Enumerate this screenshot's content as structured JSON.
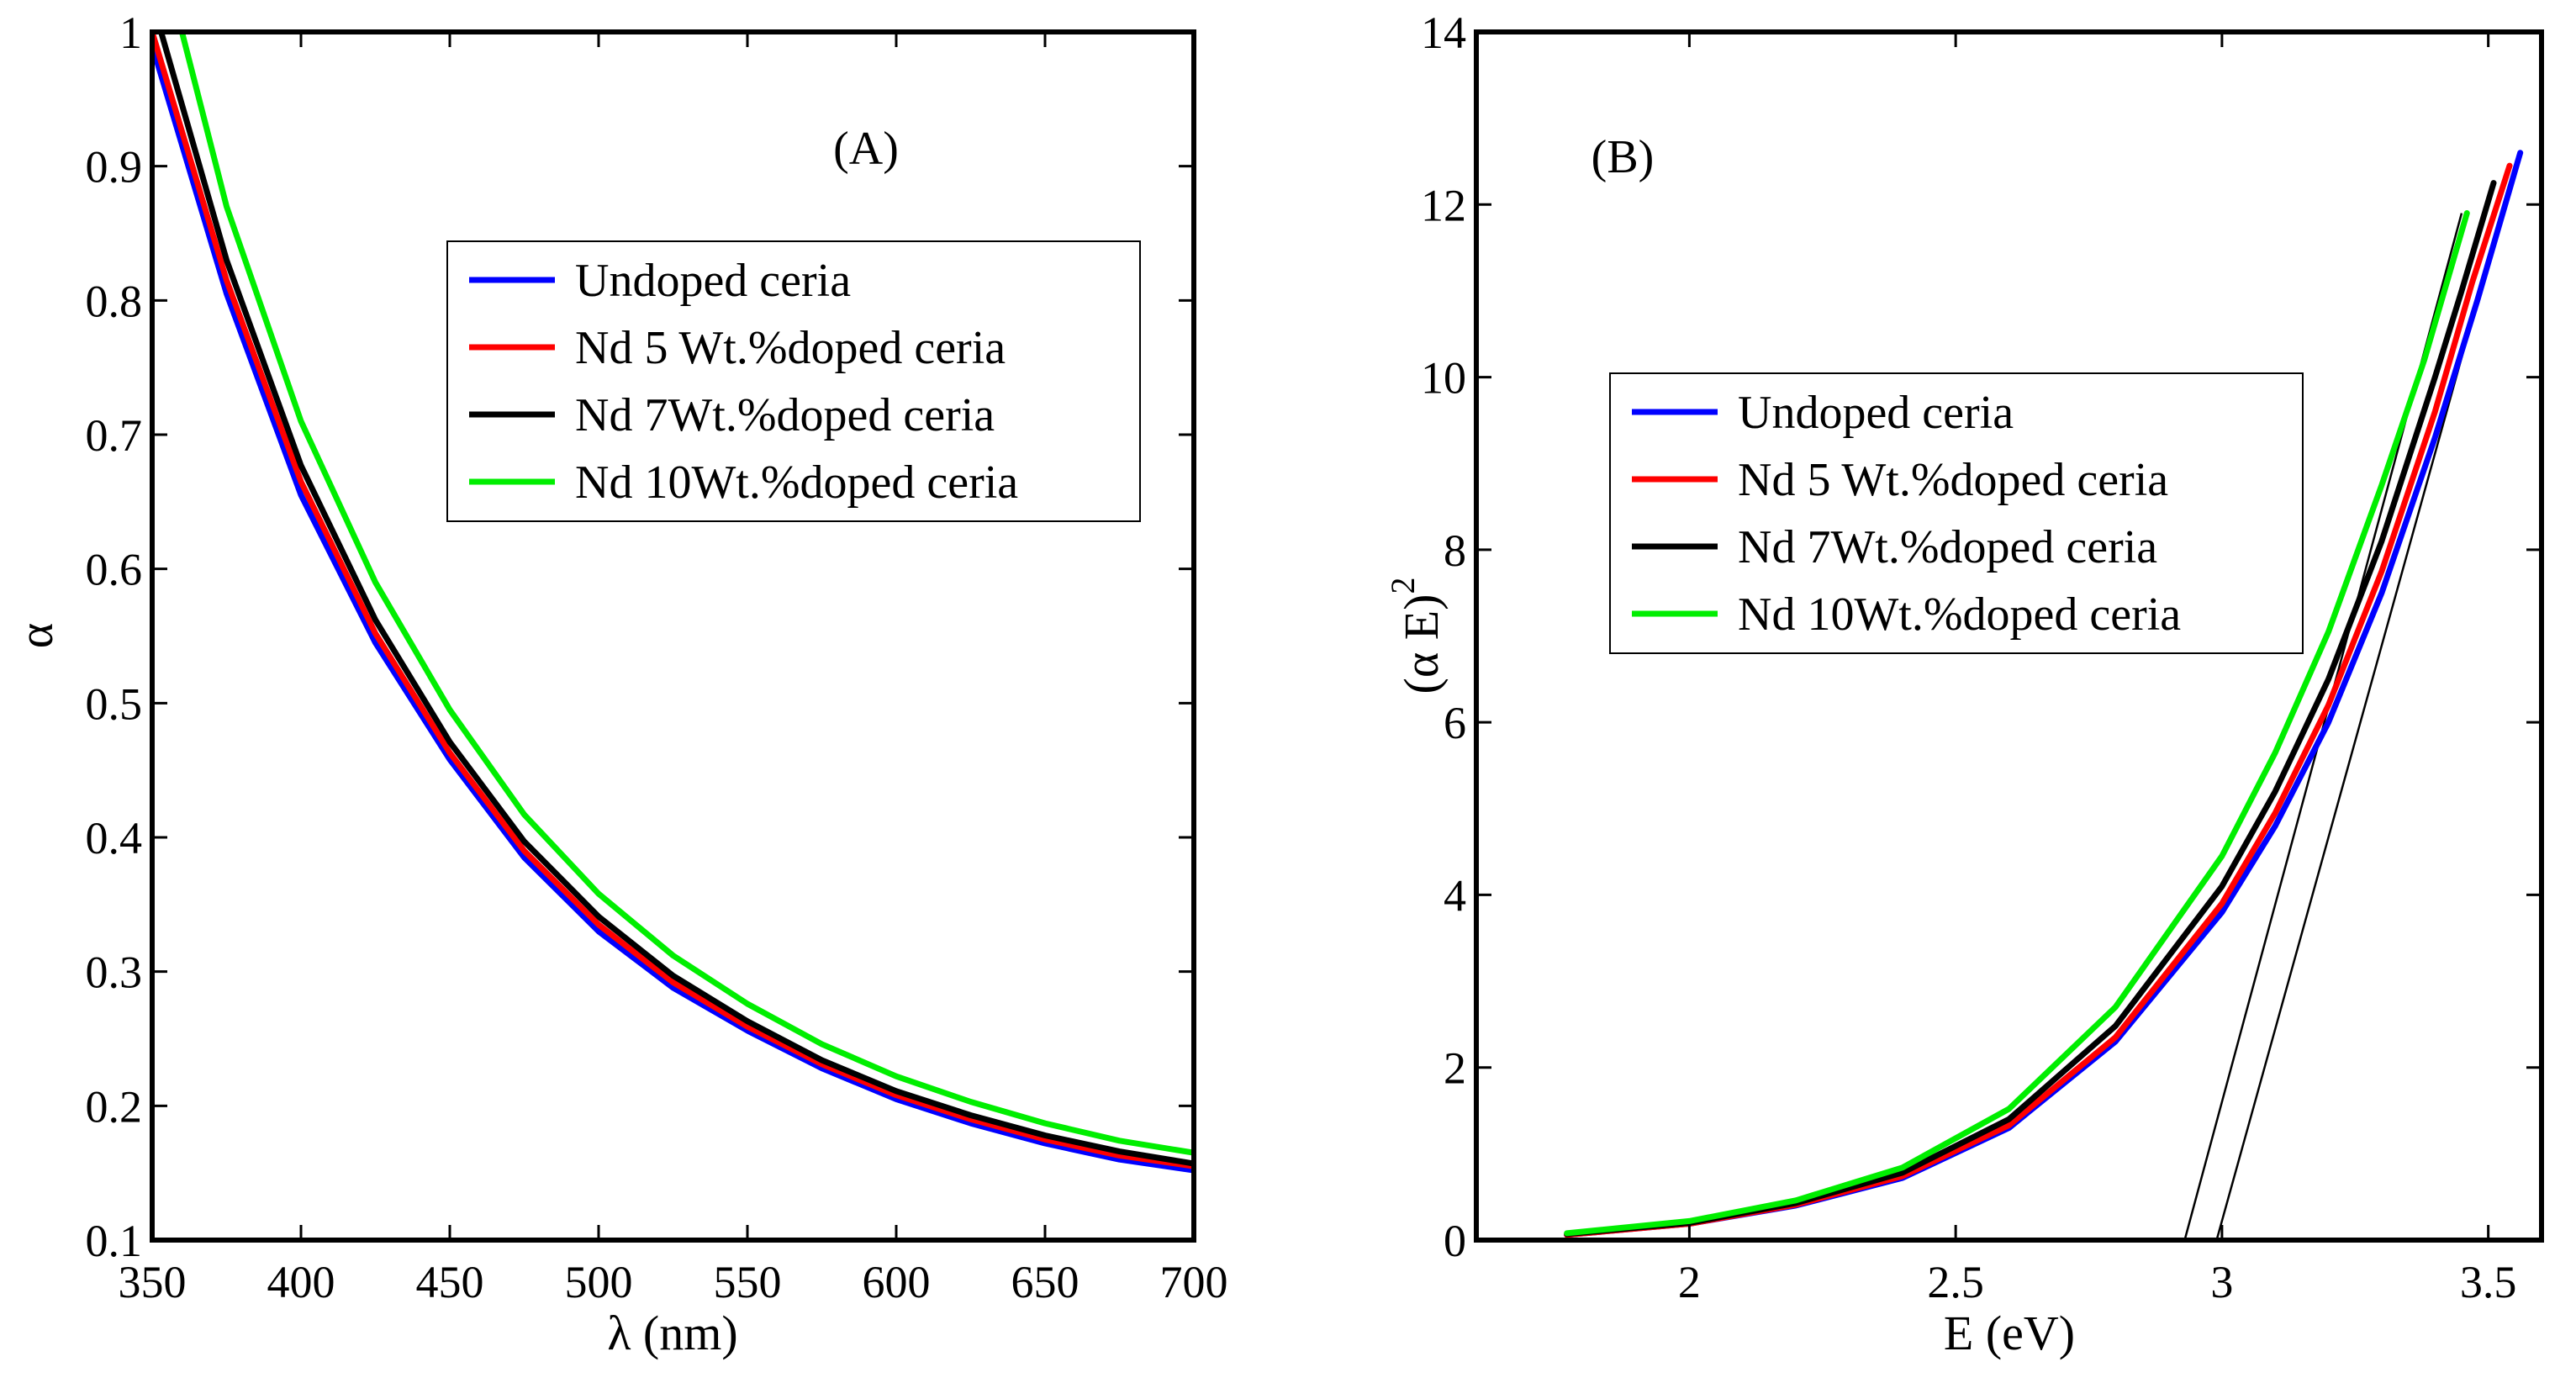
{
  "chart_data": [
    {
      "type": "line",
      "panel_label": "(A)",
      "xlabel": "λ (nm)",
      "ylabel": "α",
      "xlim": [
        350,
        700
      ],
      "ylim": [
        0.1,
        1
      ],
      "xticks": [
        350,
        400,
        450,
        500,
        550,
        600,
        650,
        700
      ],
      "yticks": [
        0.1,
        0.2,
        0.3,
        0.4,
        0.5,
        0.6,
        0.7,
        0.8,
        0.9,
        1
      ],
      "ytick_labels": [
        "0.1",
        "0.2",
        "0.3",
        "0.4",
        "0.5",
        "0.6",
        "0.7",
        "0.8",
        "0.9",
        "1"
      ],
      "grid": false,
      "legend_position": "top-right",
      "series": [
        {
          "name": "Undoped ceria",
          "color": "#0000ff",
          "x": [
            350,
            375,
            400,
            425,
            450,
            475,
            500,
            525,
            550,
            575,
            600,
            625,
            650,
            675,
            700
          ],
          "y": [
            0.99,
            0.805,
            0.655,
            0.545,
            0.458,
            0.385,
            0.33,
            0.288,
            0.256,
            0.228,
            0.205,
            0.187,
            0.172,
            0.16,
            0.152
          ]
        },
        {
          "name": "Nd 5 Wt.%doped ceria",
          "color": "#ff0000",
          "x": [
            350,
            375,
            400,
            425,
            450,
            475,
            500,
            525,
            550,
            575,
            600,
            625,
            650,
            675,
            700
          ],
          "y": [
            1.0,
            0.815,
            0.665,
            0.552,
            0.463,
            0.39,
            0.335,
            0.292,
            0.259,
            0.231,
            0.208,
            0.19,
            0.175,
            0.163,
            0.155
          ]
        },
        {
          "name": "Nd 7Wt.%doped ceria",
          "color": "#000000",
          "x": [
            353,
            375,
            400,
            425,
            450,
            475,
            500,
            525,
            550,
            575,
            600,
            625,
            650,
            675,
            700
          ],
          "y": [
            1.0,
            0.83,
            0.677,
            0.562,
            0.471,
            0.397,
            0.341,
            0.297,
            0.263,
            0.234,
            0.211,
            0.193,
            0.178,
            0.166,
            0.157
          ]
        },
        {
          "name": "Nd 10Wt.%doped ceria",
          "color": "#00ee00",
          "x": [
            360,
            375,
            400,
            425,
            450,
            475,
            500,
            525,
            550,
            575,
            600,
            625,
            650,
            675,
            700
          ],
          "y": [
            1.0,
            0.87,
            0.71,
            0.59,
            0.495,
            0.417,
            0.358,
            0.312,
            0.276,
            0.246,
            0.222,
            0.203,
            0.187,
            0.174,
            0.165
          ]
        }
      ]
    },
    {
      "type": "line",
      "panel_label": "(B)",
      "xlabel": "E (eV)",
      "ylabel": "(α E)",
      "ylabel_superscript": "2",
      "xlim": [
        1.6,
        3.6
      ],
      "ylim": [
        0,
        14
      ],
      "xticks": [
        2,
        2.5,
        3,
        3.5
      ],
      "yticks": [
        0,
        2,
        4,
        6,
        8,
        10,
        12,
        14
      ],
      "grid": false,
      "legend_position": "center-left",
      "series": [
        {
          "name": "Undoped ceria",
          "color": "#0000ff",
          "x": [
            1.77,
            2.0,
            2.2,
            2.4,
            2.6,
            2.8,
            3.0,
            3.1,
            3.2,
            3.3,
            3.4,
            3.48,
            3.56
          ],
          "y": [
            0.06,
            0.19,
            0.4,
            0.72,
            1.3,
            2.3,
            3.8,
            4.8,
            6.0,
            7.5,
            9.3,
            10.9,
            12.6
          ]
        },
        {
          "name": "Nd 5 Wt.%doped ceria",
          "color": "#ff0000",
          "x": [
            1.77,
            2.0,
            2.2,
            2.4,
            2.6,
            2.8,
            3.0,
            3.1,
            3.2,
            3.3,
            3.4,
            3.47,
            3.54
          ],
          "y": [
            0.06,
            0.19,
            0.41,
            0.74,
            1.33,
            2.35,
            3.9,
            4.95,
            6.2,
            7.75,
            9.6,
            11.1,
            12.45
          ]
        },
        {
          "name": "Nd 7Wt.%doped ceria",
          "color": "#000000",
          "x": [
            1.77,
            2.0,
            2.2,
            2.4,
            2.6,
            2.8,
            3.0,
            3.1,
            3.2,
            3.3,
            3.4,
            3.45,
            3.51
          ],
          "y": [
            0.07,
            0.2,
            0.43,
            0.78,
            1.4,
            2.48,
            4.1,
            5.2,
            6.5,
            8.1,
            10.0,
            11.0,
            12.25
          ]
        },
        {
          "name": "Nd 10Wt.%doped ceria",
          "color": "#00ee00",
          "x": [
            1.77,
            2.0,
            2.2,
            2.4,
            2.6,
            2.8,
            3.0,
            3.1,
            3.2,
            3.3,
            3.38,
            3.46
          ],
          "y": [
            0.08,
            0.22,
            0.46,
            0.84,
            1.52,
            2.7,
            4.45,
            5.65,
            7.05,
            8.75,
            10.2,
            11.9
          ]
        }
      ],
      "fit_lines": [
        {
          "x": [
            2.93,
            3.45
          ],
          "y": [
            0,
            11.9
          ]
        },
        {
          "x": [
            2.99,
            3.55
          ],
          "y": [
            0,
            12.45
          ]
        }
      ]
    }
  ]
}
